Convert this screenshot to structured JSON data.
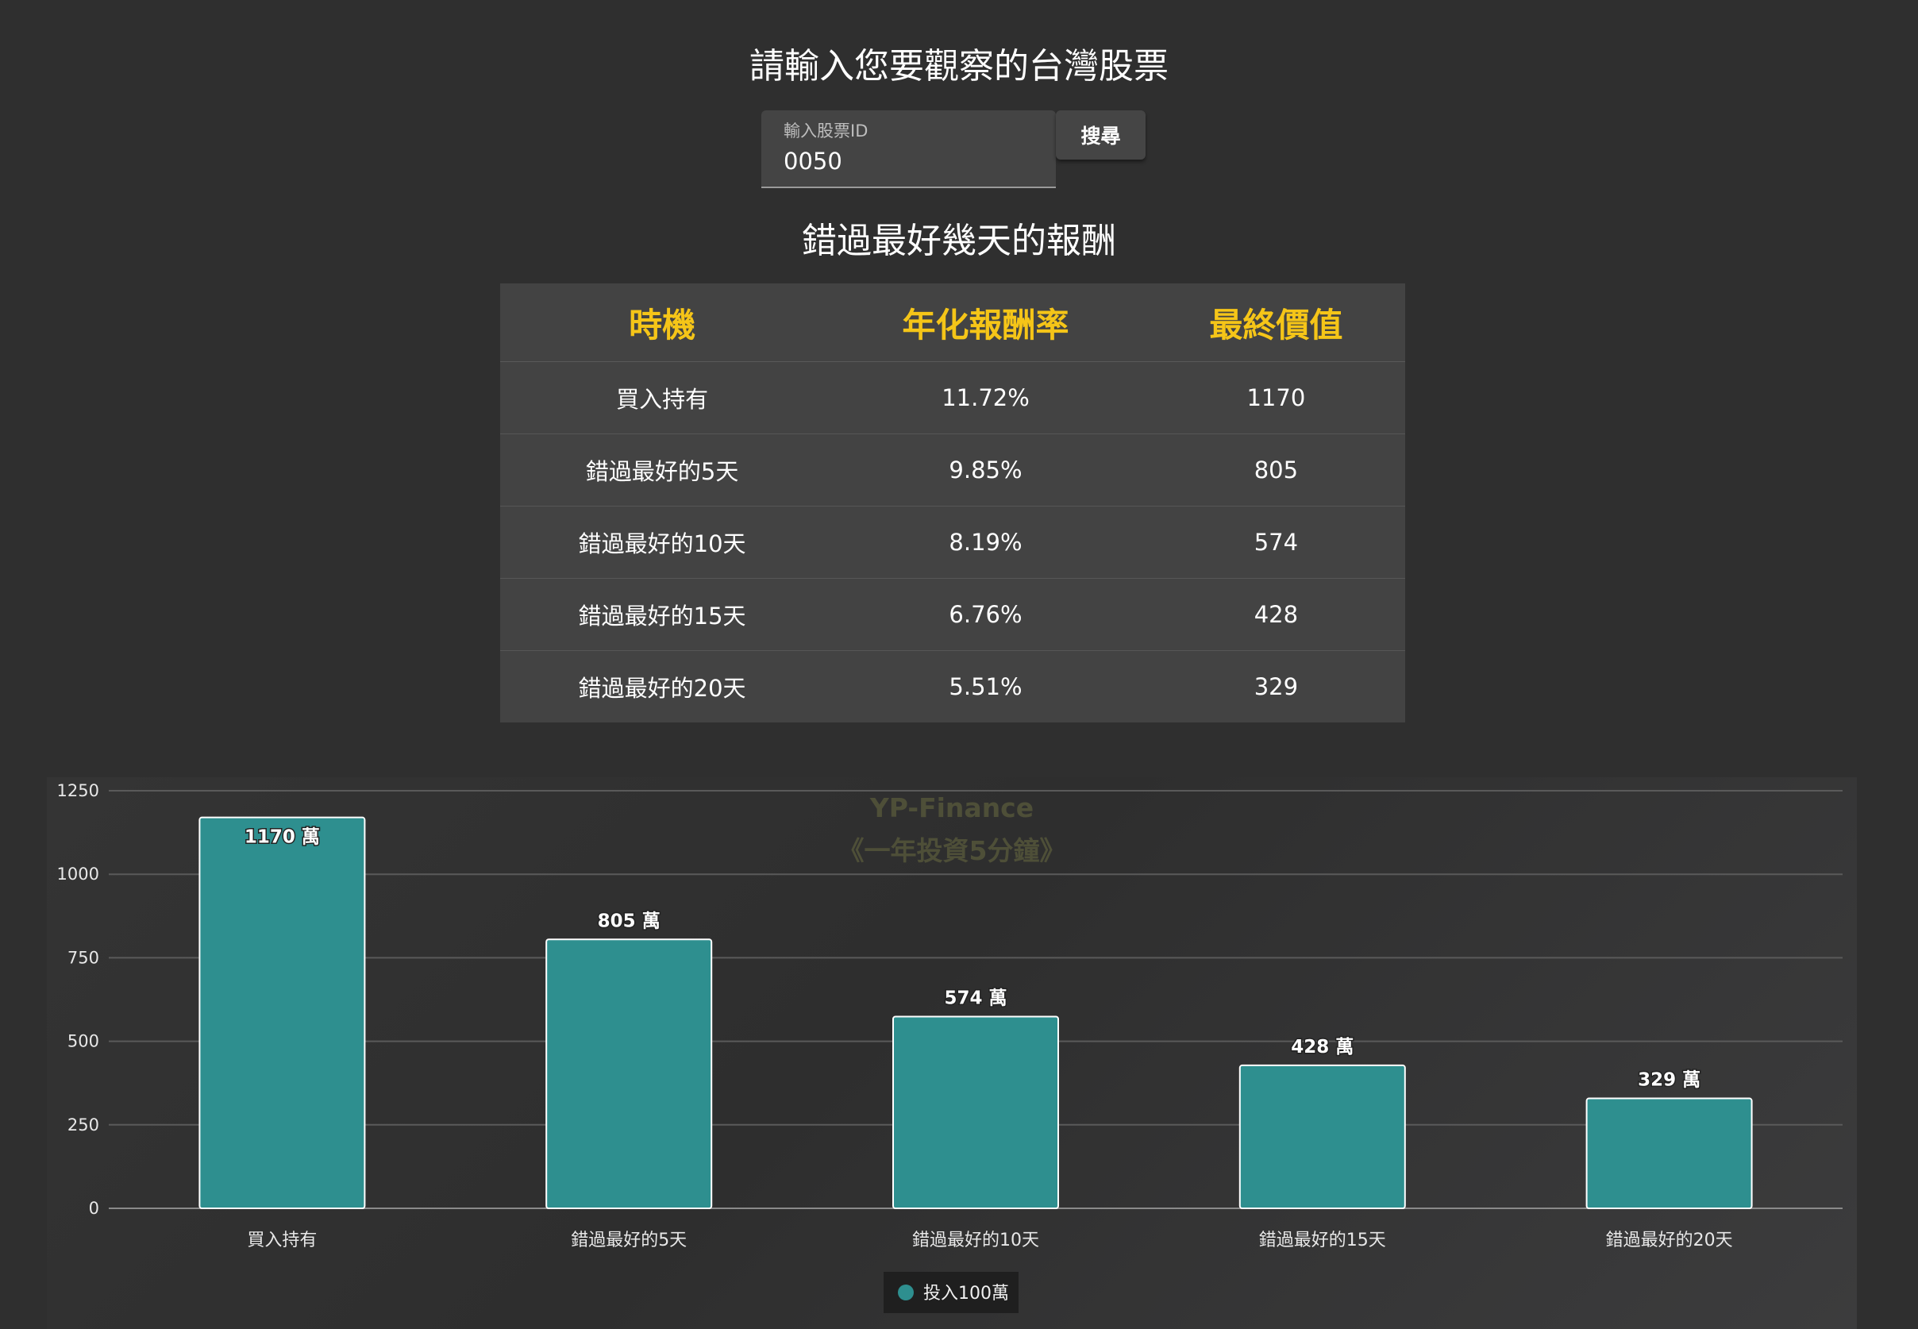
{
  "header": {
    "title": "請輸入您要觀察的台灣股票"
  },
  "search": {
    "label": "輸入股票ID",
    "value": "0050",
    "button_label": "搜尋"
  },
  "section": {
    "title": "錯過最好幾天的報酬"
  },
  "table": {
    "headers": [
      "時機",
      "年化報酬率",
      "最終價值"
    ],
    "rows": [
      [
        "買入持有",
        "11.72%",
        "1170"
      ],
      [
        "錯過最好的5天",
        "9.85%",
        "805"
      ],
      [
        "錯過最好的10天",
        "8.19%",
        "574"
      ],
      [
        "錯過最好的15天",
        "6.76%",
        "428"
      ],
      [
        "錯過最好的20天",
        "5.51%",
        "329"
      ]
    ],
    "header_color": "#f5c518"
  },
  "chart_data": {
    "type": "bar",
    "categories": [
      "買入持有",
      "錯過最好的5天",
      "錯過最好的10天",
      "錯過最好的15天",
      "錯過最好的20天"
    ],
    "series": [
      {
        "name": "投入100萬",
        "values": [
          1170,
          805,
          574,
          428,
          329
        ],
        "color": "#2e8f8f"
      }
    ],
    "data_labels": [
      "1170 萬",
      "805 萬",
      "574 萬",
      "428 萬",
      "329 萬"
    ],
    "yticks": [
      "0",
      "250",
      "500",
      "750",
      "1000",
      "1250"
    ],
    "ylim": [
      0,
      1250
    ],
    "grid": true,
    "legend": "bottom-center",
    "watermark": [
      "YP-Finance",
      "《一年投資5分鐘》"
    ],
    "watermark_color": "#4e4f38"
  }
}
